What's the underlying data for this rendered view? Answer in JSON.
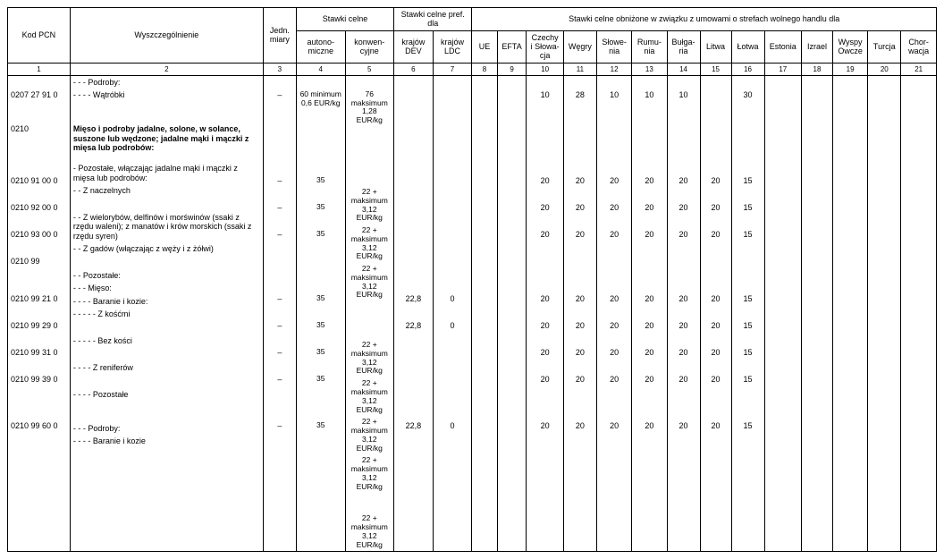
{
  "header": {
    "kod": "Kod PCN",
    "wysz": "Wyszczególnienie",
    "jedn": "Jedn. miary",
    "stawki_celne": "Stawki celne",
    "stawki_pref": "Stawki celne pref. dla",
    "stawki_obn": "Stawki celne obniżone w związku z umowami o strefach wolnego handlu dla",
    "auto": "autono-miczne",
    "konw": "konwen-cyjne",
    "dev": "krajów DEV",
    "ldc": "krajów LDC",
    "ue": "UE",
    "efta": "EFTA",
    "czechy": "Czechy i Słowa-cja",
    "wegry": "Węgry",
    "slowenia": "Słowe-nia",
    "rumunia": "Rumu-nia",
    "bulgaria": "Bułga-ria",
    "litwa": "Litwa",
    "lotwa": "Łotwa",
    "estonia": "Estonia",
    "izrael": "Izrael",
    "wyspy": "Wyspy Owcze",
    "turcja": "Turcja",
    "chorwacja": "Chor-wacja"
  },
  "colnums": [
    "1",
    "2",
    "3",
    "4",
    "5",
    "6",
    "7",
    "8",
    "9",
    "10",
    "11",
    "12",
    "13",
    "14",
    "15",
    "16",
    "17",
    "18",
    "19",
    "20",
    "21"
  ],
  "rows": [
    {
      "code": "",
      "desc": "- - - Podroby:",
      "style": "ind1"
    },
    {
      "code": "0207 27 91 0",
      "desc": "- - - - Wątróbki",
      "style": "ind2",
      "jedn": "–",
      "auto": "60 minimum 0,6 EUR/kg",
      "konw": "76 maksimum 1,28 EUR/kg",
      "c10": "10",
      "c11": "28",
      "c12": "10",
      "c13": "10",
      "c14": "10",
      "c16": "30"
    },
    {
      "spacer": true
    },
    {
      "code": "0210",
      "desc_html": "<span class='bold'>Mięso i podroby jadalne, solone, w solance, suszone lub wędzone; jadalne mąki i mączki z mięsa lub podrobów:</span>",
      "style": "ind0"
    },
    {
      "code": "",
      "desc": "- Pozostałe, włączając jadalne mąki i mączki z mięsa lub podrobów:",
      "style": "ind1"
    },
    {
      "code": "0210 91 00 0",
      "desc": "- - Z naczelnych",
      "style": "ind2",
      "jedn": "–",
      "auto": "35",
      "konw": "22 + maksimum 3,12 EUR/kg",
      "c10": "20",
      "c11": "20",
      "c12": "20",
      "c13": "20",
      "c14": "20",
      "c15": "20",
      "c16": "15"
    },
    {
      "code": "0210 92 00 0",
      "desc": "- - Z wielorybów, delfinów i morświnów (ssaki z rzędu waleni); z manatów i krów morskich (ssaki z rzędu syren)",
      "style": "ind2",
      "jedn": "–",
      "auto": "35",
      "konw": "22 + maksimum 3,12 EUR/kg",
      "c10": "20",
      "c11": "20",
      "c12": "20",
      "c13": "20",
      "c14": "20",
      "c15": "20",
      "c16": "15"
    },
    {
      "code": "0210 93 00 0",
      "desc": "- - Z gadów (włączając z węży i z żółwi)",
      "style": "ind2",
      "jedn": "–",
      "auto": "35",
      "konw": "22 + maksimum 3,12 EUR/kg",
      "c10": "20",
      "c11": "20",
      "c12": "20",
      "c13": "20",
      "c14": "20",
      "c15": "20",
      "c16": "15"
    },
    {
      "code": "0210 99",
      "desc": "- - Pozostałe:",
      "style": "ind2"
    },
    {
      "code": "",
      "desc": "- - - Mięso:",
      "style": "ind3"
    },
    {
      "code": "",
      "desc": "- - - - Baranie i kozie:",
      "style": "ind4"
    },
    {
      "code": "0210 99 21 0",
      "desc": "- - - - - Z kośćmi",
      "style": "ind5",
      "jedn": "–",
      "auto": "35",
      "konw": "22 + maksimum 3,12 EUR/kg",
      "dev": "22,8",
      "ldc": "0",
      "c10": "20",
      "c11": "20",
      "c12": "20",
      "c13": "20",
      "c14": "20",
      "c15": "20",
      "c16": "15"
    },
    {
      "code": "0210 99 29 0",
      "desc": "- - - - - Bez kości",
      "style": "ind5",
      "jedn": "–",
      "auto": "35",
      "konw": "22 + maksimum 3,12 EUR/kg",
      "dev": "22,8",
      "ldc": "0",
      "c10": "20",
      "c11": "20",
      "c12": "20",
      "c13": "20",
      "c14": "20",
      "c15": "20",
      "c16": "15"
    },
    {
      "code": "0210 99 31 0",
      "desc": "- - - - Z reniferów",
      "style": "ind4",
      "jedn": "–",
      "auto": "35",
      "konw": "22 + maksimum 3,12 EUR/kg",
      "c10": "20",
      "c11": "20",
      "c12": "20",
      "c13": "20",
      "c14": "20",
      "c15": "20",
      "c16": "15"
    },
    {
      "code": "0210 99 39 0",
      "desc": "- - - - Pozostałe",
      "style": "ind4",
      "jedn": "–",
      "auto": "35",
      "konw": "22 + maksimum 3,12 EUR/kg",
      "c10": "20",
      "c11": "20",
      "c12": "20",
      "c13": "20",
      "c14": "20",
      "c15": "20",
      "c16": "15"
    },
    {
      "spacer": true
    },
    {
      "code": "",
      "desc": "- - - Podroby:",
      "style": "ind3"
    },
    {
      "code": "0210 99 60 0",
      "desc": "- - - - Baranie i kozie",
      "style": "ind4",
      "jedn": "–",
      "auto": "35",
      "konw": "22 + maksimum 3,12 EUR/kg",
      "dev": "22,8",
      "ldc": "0",
      "c10": "20",
      "c11": "20",
      "c12": "20",
      "c13": "20",
      "c14": "20",
      "c15": "20",
      "c16": "15"
    }
  ]
}
